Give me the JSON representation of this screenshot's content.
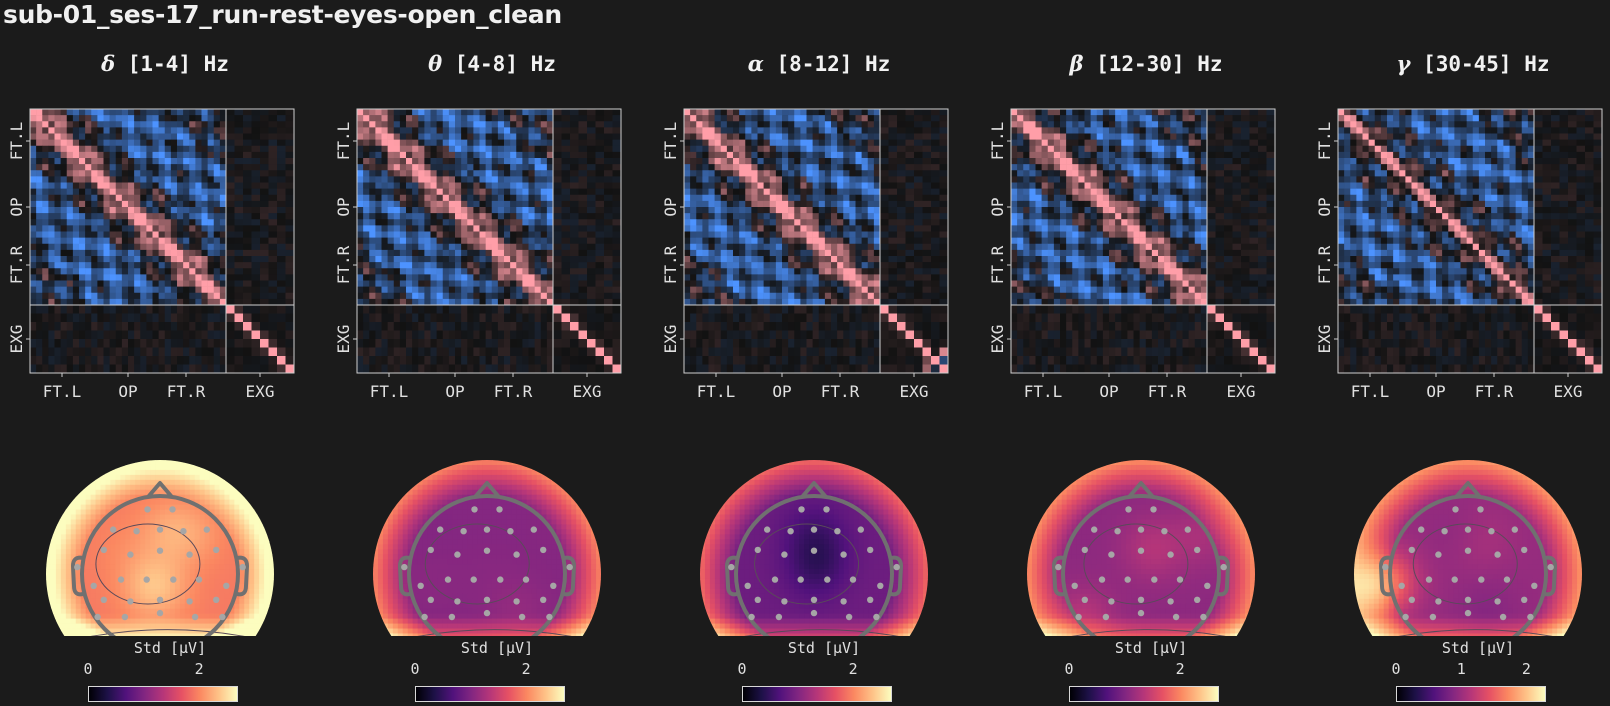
{
  "title": "sub-01_ses-17_run-rest-eyes-open_clean",
  "colors": {
    "background": "#1b1b1b",
    "matrix_positive": "#ff9ea8",
    "matrix_negative": "#4d93ff",
    "head_outline": "#707070",
    "sensor": "#a6a6a6",
    "colormap": "magma"
  },
  "chart_data": [
    {
      "type": "heatmap",
      "band": {
        "symbol": "δ",
        "range": "[1-4] Hz"
      },
      "matrix_groups": [
        "FT.L",
        "OP",
        "FT.R",
        "EXG"
      ],
      "colorbar": {
        "label": "Std [µV]",
        "ticks": [
          "0",
          "2"
        ],
        "tick_values": [
          0,
          2
        ],
        "range": [
          0,
          2.7
        ]
      },
      "topomap": {
        "sensors": 32,
        "mean_level": 0.72,
        "hotspot": "bottom"
      }
    },
    {
      "type": "heatmap",
      "band": {
        "symbol": "θ",
        "range": "[4-8] Hz"
      },
      "matrix_groups": [
        "FT.L",
        "OP",
        "FT.R",
        "EXG"
      ],
      "colorbar": {
        "label": "Std [µV]",
        "ticks": [
          "0",
          "2"
        ],
        "tick_values": [
          0,
          2
        ],
        "range": [
          0,
          2.7
        ]
      },
      "topomap": {
        "sensors": 32,
        "mean_level": 0.38,
        "hotspot": "bottom"
      }
    },
    {
      "type": "heatmap",
      "band": {
        "symbol": "α",
        "range": "[8-12] Hz"
      },
      "matrix_groups": [
        "FT.L",
        "OP",
        "FT.R",
        "EXG"
      ],
      "colorbar": {
        "label": "Std [µV]",
        "ticks": [
          "0",
          "2"
        ],
        "tick_values": [
          0,
          2
        ],
        "range": [
          0,
          2.7
        ]
      },
      "topomap": {
        "sensors": 32,
        "mean_level": 0.32,
        "hotspot": "bottom"
      }
    },
    {
      "type": "heatmap",
      "band": {
        "symbol": "β",
        "range": "[12-30] Hz"
      },
      "matrix_groups": [
        "FT.L",
        "OP",
        "FT.R",
        "EXG"
      ],
      "colorbar": {
        "label": "Std [µV]",
        "ticks": [
          "0",
          "2"
        ],
        "tick_values": [
          0,
          2
        ],
        "range": [
          0,
          2.7
        ]
      },
      "topomap": {
        "sensors": 32,
        "mean_level": 0.4,
        "hotspot": "bottom"
      }
    },
    {
      "type": "heatmap",
      "band": {
        "symbol": "γ",
        "range": "[30-45] Hz"
      },
      "matrix_groups": [
        "FT.L",
        "OP",
        "FT.R",
        "EXG"
      ],
      "colorbar": {
        "label": "Std [µV]",
        "ticks": [
          "0",
          "1",
          "2"
        ],
        "tick_values": [
          0,
          1,
          2
        ],
        "range": [
          0,
          2.3
        ]
      },
      "topomap": {
        "sensors": 32,
        "mean_level": 0.42,
        "hotspot": "left-bottom"
      }
    }
  ]
}
